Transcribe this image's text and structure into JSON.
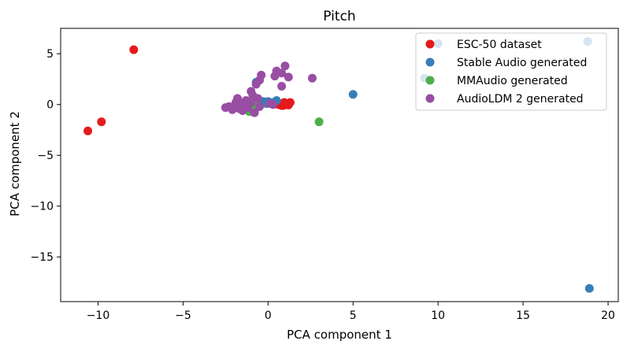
{
  "chart_data": {
    "type": "scatter",
    "title": "Pitch",
    "xlabel": "PCA component 1",
    "ylabel": "PCA component 2",
    "xlim": [
      -12.2,
      20.6
    ],
    "ylim": [
      -19.4,
      7.5
    ],
    "xticks": [
      -10,
      -5,
      0,
      5,
      10,
      15,
      20
    ],
    "yticks": [
      5,
      0,
      -5,
      -10,
      -15
    ],
    "xtick_labels": [
      "−10",
      "−5",
      "0",
      "5",
      "10",
      "15",
      "20"
    ],
    "ytick_labels": [
      "5",
      "0",
      "−5",
      "−10",
      "−15"
    ],
    "grid": false,
    "legend_position": "top-right",
    "series": [
      {
        "name": "ESC-50 dataset",
        "color": "#e41a1c",
        "points": [
          [
            -7.9,
            5.4
          ],
          [
            -10.6,
            -2.6
          ],
          [
            -9.8,
            -1.7
          ],
          [
            0.5,
            0.1
          ],
          [
            0.7,
            0.0
          ],
          [
            0.9,
            -0.1
          ],
          [
            1.1,
            0.0
          ],
          [
            1.3,
            0.2
          ],
          [
            0.8,
            -0.1
          ],
          [
            1.0,
            0.1
          ],
          [
            0.6,
            0.0
          ],
          [
            1.2,
            -0.05
          ],
          [
            0.95,
            0.2
          ]
        ]
      },
      {
        "name": "Stable Audio generated",
        "color": "#377eb8",
        "points": [
          [
            18.9,
            -18.1
          ],
          [
            5.0,
            1.0
          ],
          [
            18.8,
            6.2
          ],
          [
            9.2,
            2.6
          ],
          [
            10.0,
            6.0
          ],
          [
            -0.7,
            2.2
          ],
          [
            -0.3,
            0.3
          ],
          [
            0.0,
            0.3
          ],
          [
            0.3,
            0.2
          ],
          [
            0.5,
            0.4
          ],
          [
            -0.5,
            0.1
          ],
          [
            -0.1,
            0.1
          ]
        ]
      },
      {
        "name": "MMAudio generated",
        "color": "#4daf4a",
        "points": [
          [
            3.0,
            -1.7
          ],
          [
            -1.1,
            -0.7
          ],
          [
            -0.9,
            -0.5
          ],
          [
            -1.4,
            -0.4
          ],
          [
            -0.6,
            -0.2
          ]
        ]
      },
      {
        "name": "AudioLDM 2 generated",
        "color": "#984ea3",
        "points": [
          [
            1.0,
            3.8
          ],
          [
            0.8,
            3.1
          ],
          [
            0.5,
            3.3
          ],
          [
            0.4,
            2.8
          ],
          [
            1.2,
            2.7
          ],
          [
            2.6,
            2.6
          ],
          [
            0.8,
            1.8
          ],
          [
            -0.4,
            2.9
          ],
          [
            -0.5,
            2.4
          ],
          [
            -0.7,
            2.0
          ],
          [
            -1.0,
            1.3
          ],
          [
            -0.9,
            0.9
          ],
          [
            -1.8,
            0.6
          ],
          [
            -0.6,
            0.6
          ],
          [
            -1.3,
            0.4
          ],
          [
            -1.6,
            0.1
          ],
          [
            -2.3,
            -0.2
          ],
          [
            -2.0,
            -0.3
          ],
          [
            -1.7,
            -0.4
          ],
          [
            -1.2,
            -0.3
          ],
          [
            -0.8,
            -0.8
          ],
          [
            -0.5,
            -0.2
          ],
          [
            0.1,
            0.1
          ],
          [
            0.3,
            0.0
          ],
          [
            -2.5,
            -0.3
          ],
          [
            -1.5,
            -0.6
          ],
          [
            -1.0,
            0.2
          ],
          [
            -2.1,
            -0.5
          ],
          [
            -1.9,
            0.2
          ]
        ]
      }
    ]
  }
}
